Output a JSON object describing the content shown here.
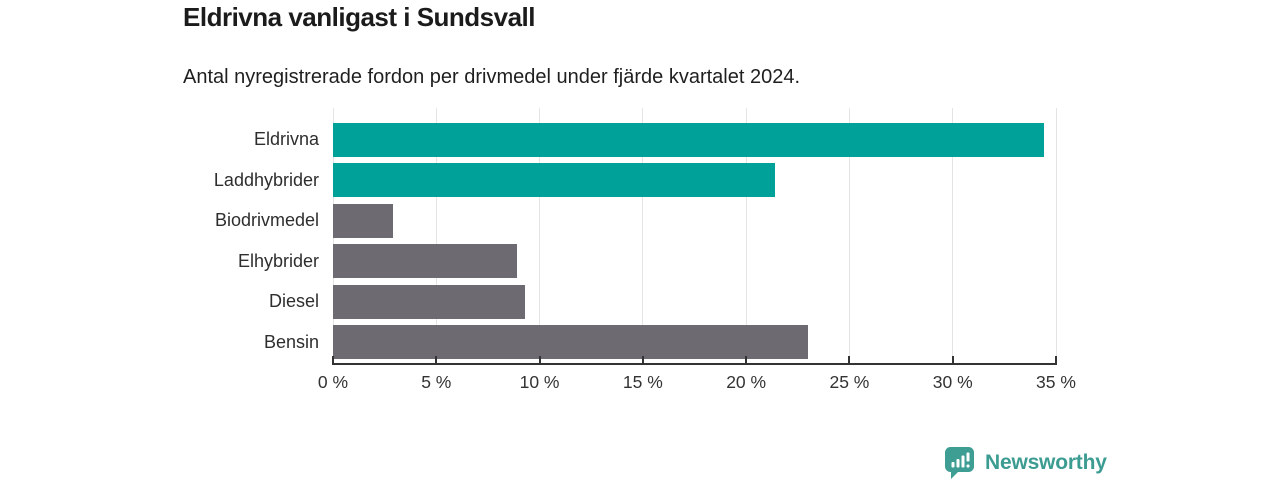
{
  "header": {
    "title": "Eldrivna vanligast i Sundsvall",
    "subtitle": "Antal nyregistrerade fordon per drivmedel under fjärde kvartalet 2024."
  },
  "chart_data": {
    "type": "bar",
    "orientation": "horizontal",
    "title": "Eldrivna vanligast i Sundsvall",
    "subtitle": "Antal nyregistrerade fordon per drivmedel under fjärde kvartalet 2024.",
    "categories": [
      "Eldrivna",
      "Laddhybrider",
      "Biodrivmedel",
      "Elhybrider",
      "Diesel",
      "Bensin"
    ],
    "values": [
      34.4,
      21.4,
      2.9,
      8.9,
      9.3,
      23.0
    ],
    "unit": "%",
    "bar_colors": [
      "#00a199",
      "#00a199",
      "#6e6a72",
      "#6e6a72",
      "#6e6a72",
      "#6e6a72"
    ],
    "xlim": [
      0,
      35
    ],
    "x_ticks": [
      0,
      5,
      10,
      15,
      20,
      25,
      30,
      35
    ],
    "x_tick_labels": [
      "0 %",
      "5 %",
      "10 %",
      "15 %",
      "20 %",
      "25 %",
      "30 %",
      "35 %"
    ],
    "xlabel": "",
    "ylabel": "",
    "grid": "vertical-only",
    "legend": "none"
  },
  "colors": {
    "accent_teal": "#00a199",
    "bar_gray": "#6e6a72",
    "gridline": "#e4e4e4",
    "axis": "#333333",
    "title_text": "#1b1b1b",
    "body_text": "#2e2e2e",
    "logo_teal": "#3c9c92",
    "background": "#ffffff"
  },
  "footer": {
    "brand": "Newsworthy",
    "logo_icon": "bar-chart-speech-bubble-icon"
  }
}
